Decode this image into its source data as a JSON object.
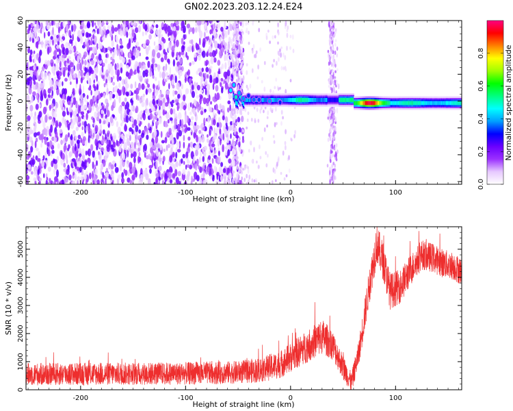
{
  "title": "GN02.2023.203.12.24.E24",
  "chart_data": [
    {
      "type": "heatmap",
      "xlabel": "Height of straight line (km)",
      "ylabel": "Frequency (Hz)",
      "xlim": [
        -252,
        163
      ],
      "ylim": [
        -62,
        60
      ],
      "xticks": [
        -200,
        -100,
        0,
        100
      ],
      "yticks": [
        -60,
        -40,
        -20,
        0,
        20,
        40,
        60
      ],
      "colorbar": {
        "label": "Normalized spectral amplitude",
        "range": [
          0,
          1
        ],
        "ticks": [
          0.0,
          0.2,
          0.4,
          0.6,
          0.8
        ],
        "colors": [
          "#ffffff",
          "#e6c8ff",
          "#9b30ff",
          "#6a00ff",
          "#0000ff",
          "#00a0ff",
          "#00ffff",
          "#00ff80",
          "#00ff00",
          "#a0ff00",
          "#ffff00",
          "#ff8000",
          "#ff0000",
          "#ff0080"
        ]
      },
      "features": [
        {
          "name": "noise",
          "x_range": [
            -252,
            -55
          ],
          "freq_range": [
            -62,
            60
          ],
          "level": 0.15
        },
        {
          "name": "signal_band",
          "x_range": [
            -55,
            163
          ],
          "freq": 0,
          "halfwidth_hz": 3,
          "peak_x": 75,
          "peak_level": 0.95
        },
        {
          "name": "vertical_stripe",
          "x": 40,
          "freq_range": [
            -62,
            60
          ],
          "level": 0.12
        }
      ]
    },
    {
      "type": "line",
      "xlabel": "Height of straight line (km)",
      "ylabel": "SNR (10 * v/v)",
      "xlim": [
        -252,
        163
      ],
      "ylim": [
        0,
        5800
      ],
      "xticks": [
        -200,
        -100,
        0,
        100
      ],
      "yticks": [
        0,
        1000,
        2000,
        3000,
        4000,
        5000
      ],
      "color": "#ee2e2e",
      "envelope": {
        "x": [
          -252,
          -200,
          -150,
          -100,
          -50,
          -30,
          -10,
          10,
          30,
          40,
          50,
          58,
          65,
          75,
          82,
          88,
          95,
          105,
          115,
          125,
          135,
          145,
          155,
          163
        ],
        "y": [
          550,
          560,
          570,
          580,
          620,
          700,
          900,
          1400,
          1900,
          1600,
          800,
          250,
          1300,
          3700,
          5200,
          4600,
          3500,
          3700,
          4300,
          4800,
          4700,
          4500,
          4400,
          4200
        ]
      },
      "spread": {
        "x": [
          -252,
          -50,
          -10,
          30,
          58,
          80,
          120,
          163
        ],
        "y": [
          450,
          450,
          550,
          700,
          400,
          800,
          600,
          550
        ]
      }
    }
  ]
}
